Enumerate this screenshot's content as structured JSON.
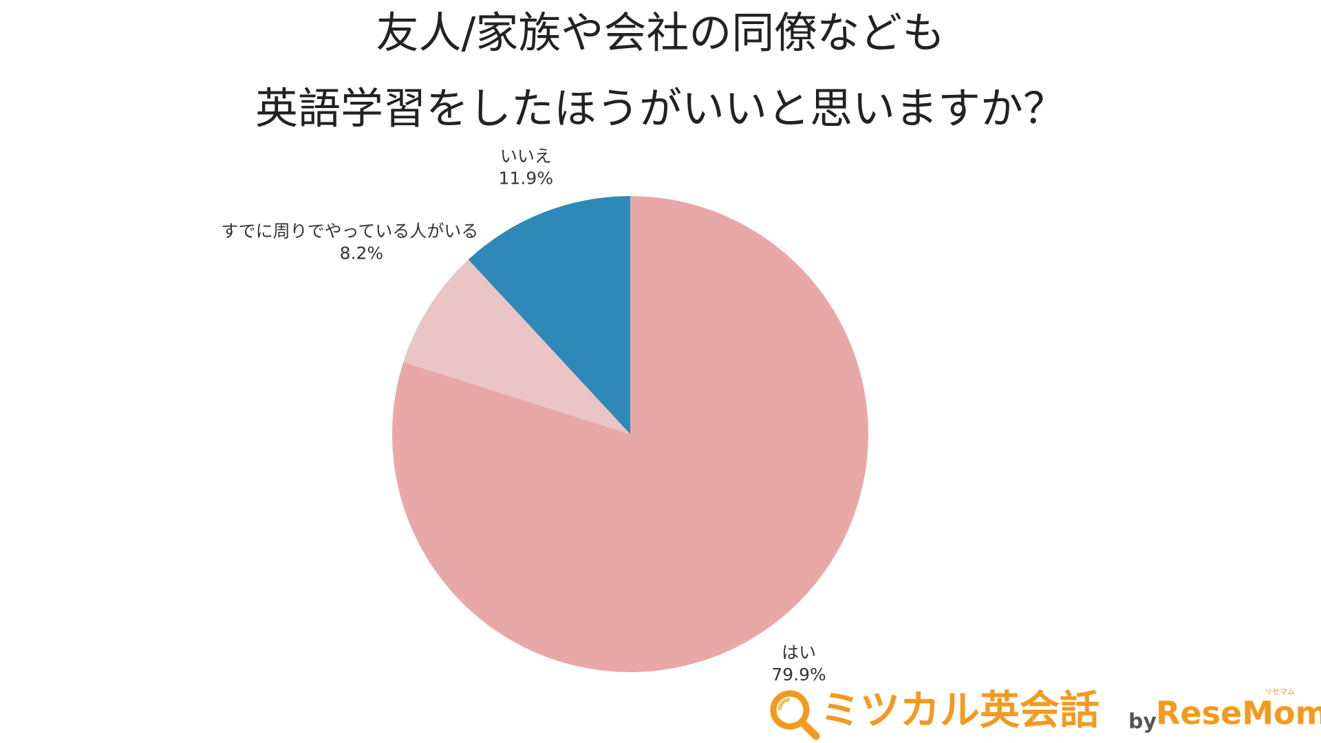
{
  "chart_data": {
    "type": "pie",
    "title": [
      "友人/家族や会社の同僚なども",
      "英語学習をしたほうがいいと思いますか？"
    ],
    "categories": [
      "はい",
      "すでに周りでやっている人がいる",
      "いいえ"
    ],
    "values": [
      79.9,
      8.2,
      11.9
    ],
    "value_labels": [
      "79.9%",
      "8.2%",
      "11.9%"
    ],
    "colors": [
      "#e9a8a8",
      "#ebc5c6",
      "#2e89b8"
    ],
    "start": "top",
    "direction": "clockwise"
  },
  "logo": {
    "name": "ミツカル英会話",
    "by": "by",
    "brand": "ReseMom",
    "ruby": "リセマム"
  }
}
